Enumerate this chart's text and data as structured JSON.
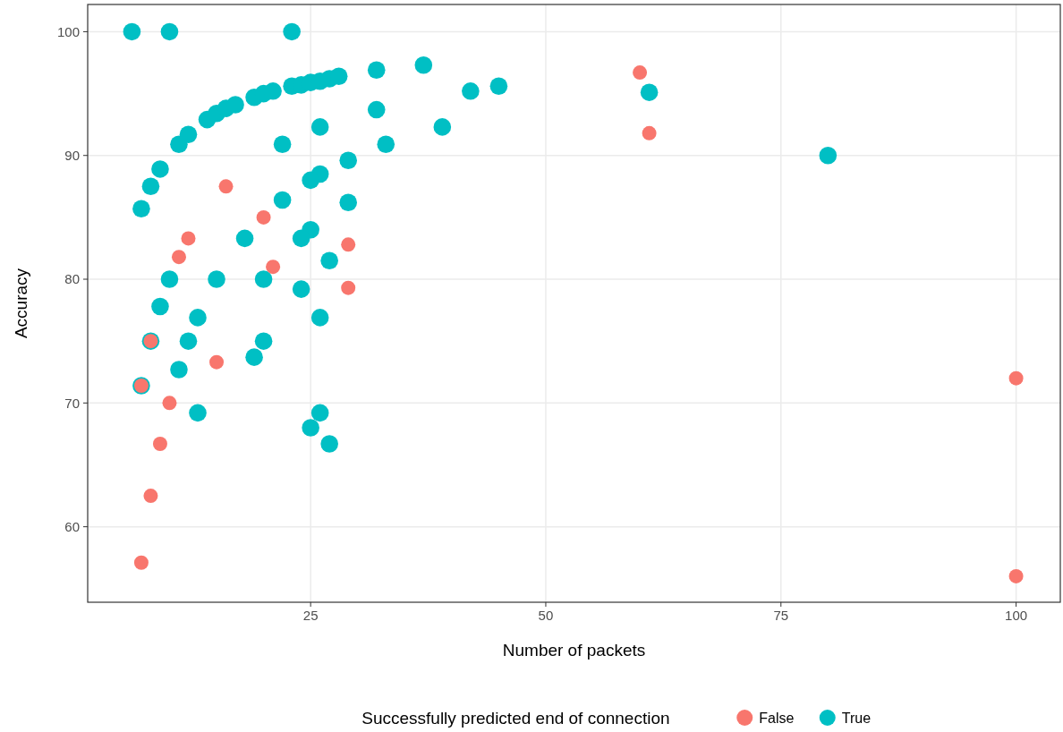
{
  "chart_data": {
    "type": "scatter",
    "xlabel": "Number of packets",
    "ylabel": "Accuracy",
    "legend_title": "Successfully predicted end of connection",
    "xlim": [
      1.3,
      104.7
    ],
    "ylim": [
      53.9,
      102.2
    ],
    "xticks": [
      25,
      50,
      75,
      100
    ],
    "yticks": [
      60,
      70,
      80,
      90,
      100
    ],
    "grid": true,
    "legend": "bottom",
    "marker": "circle",
    "series": [
      {
        "name": "False",
        "color": "#f8766d",
        "x": [
          60,
          61,
          16,
          20,
          12,
          29,
          11,
          21,
          29,
          8,
          15,
          7,
          10,
          100,
          9,
          8,
          7,
          100
        ],
        "values": [
          96.7,
          91.8,
          87.5,
          85.0,
          83.3,
          82.8,
          81.8,
          81.0,
          79.3,
          75,
          73.3,
          71.4,
          70,
          72.0,
          66.7,
          62.5,
          57.1,
          56.0
        ]
      },
      {
        "name": "True",
        "color": "#00bfc4",
        "x": [
          6,
          10,
          23,
          7,
          8,
          9,
          11,
          12,
          14,
          15,
          16,
          17,
          19,
          20,
          21,
          23,
          24,
          25,
          26,
          27,
          28,
          32,
          37,
          32,
          42,
          45,
          61,
          80,
          39,
          26,
          22,
          33,
          29,
          26,
          25,
          22,
          29,
          18,
          25,
          24,
          27,
          10,
          15,
          20,
          24,
          9,
          13,
          26,
          12,
          20,
          8,
          19,
          11,
          7,
          13,
          26,
          25,
          27
        ],
        "values": [
          100,
          100,
          100,
          85.7,
          87.5,
          88.9,
          90.9,
          91.7,
          92.9,
          93.4,
          93.8,
          94.1,
          94.7,
          95.0,
          95.2,
          95.6,
          95.7,
          95.9,
          96.0,
          96.2,
          96.4,
          96.9,
          97.3,
          93.7,
          95.2,
          95.6,
          95.1,
          90,
          92.3,
          92.3,
          90.9,
          90.9,
          89.6,
          88.5,
          88.0,
          86.4,
          86.2,
          83.3,
          84.0,
          83.3,
          81.5,
          80,
          80,
          80,
          79.2,
          77.8,
          76.9,
          76.9,
          75,
          75,
          75,
          73.7,
          72.7,
          71.4,
          69.2,
          69.2,
          68.0,
          66.7
        ]
      }
    ]
  }
}
